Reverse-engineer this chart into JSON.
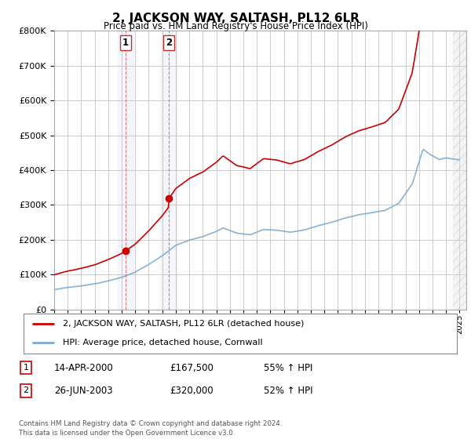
{
  "title": "2, JACKSON WAY, SALTASH, PL12 6LR",
  "subtitle": "Price paid vs. HM Land Registry's House Price Index (HPI)",
  "hpi_color": "#7aaad0",
  "property_color": "#cc0000",
  "background_color": "#ffffff",
  "grid_color": "#cccccc",
  "sale1_date": 2000.29,
  "sale1_price": 167500,
  "sale2_date": 2003.49,
  "sale2_price": 320000,
  "legend_line1": "2, JACKSON WAY, SALTASH, PL12 6LR (detached house)",
  "legend_line2": "HPI: Average price, detached house, Cornwall",
  "table_row1": [
    "1",
    "14-APR-2000",
    "£167,500",
    "55% ↑ HPI"
  ],
  "table_row2": [
    "2",
    "26-JUN-2003",
    "£320,000",
    "52% ↑ HPI"
  ],
  "footer": "Contains HM Land Registry data © Crown copyright and database right 2024.\nThis data is licensed under the Open Government Licence v3.0.",
  "ylim": [
    0,
    800000
  ],
  "yticks": [
    0,
    100000,
    200000,
    300000,
    400000,
    500000,
    600000,
    700000,
    800000
  ],
  "xmin": 1995,
  "xmax": 2025.5
}
